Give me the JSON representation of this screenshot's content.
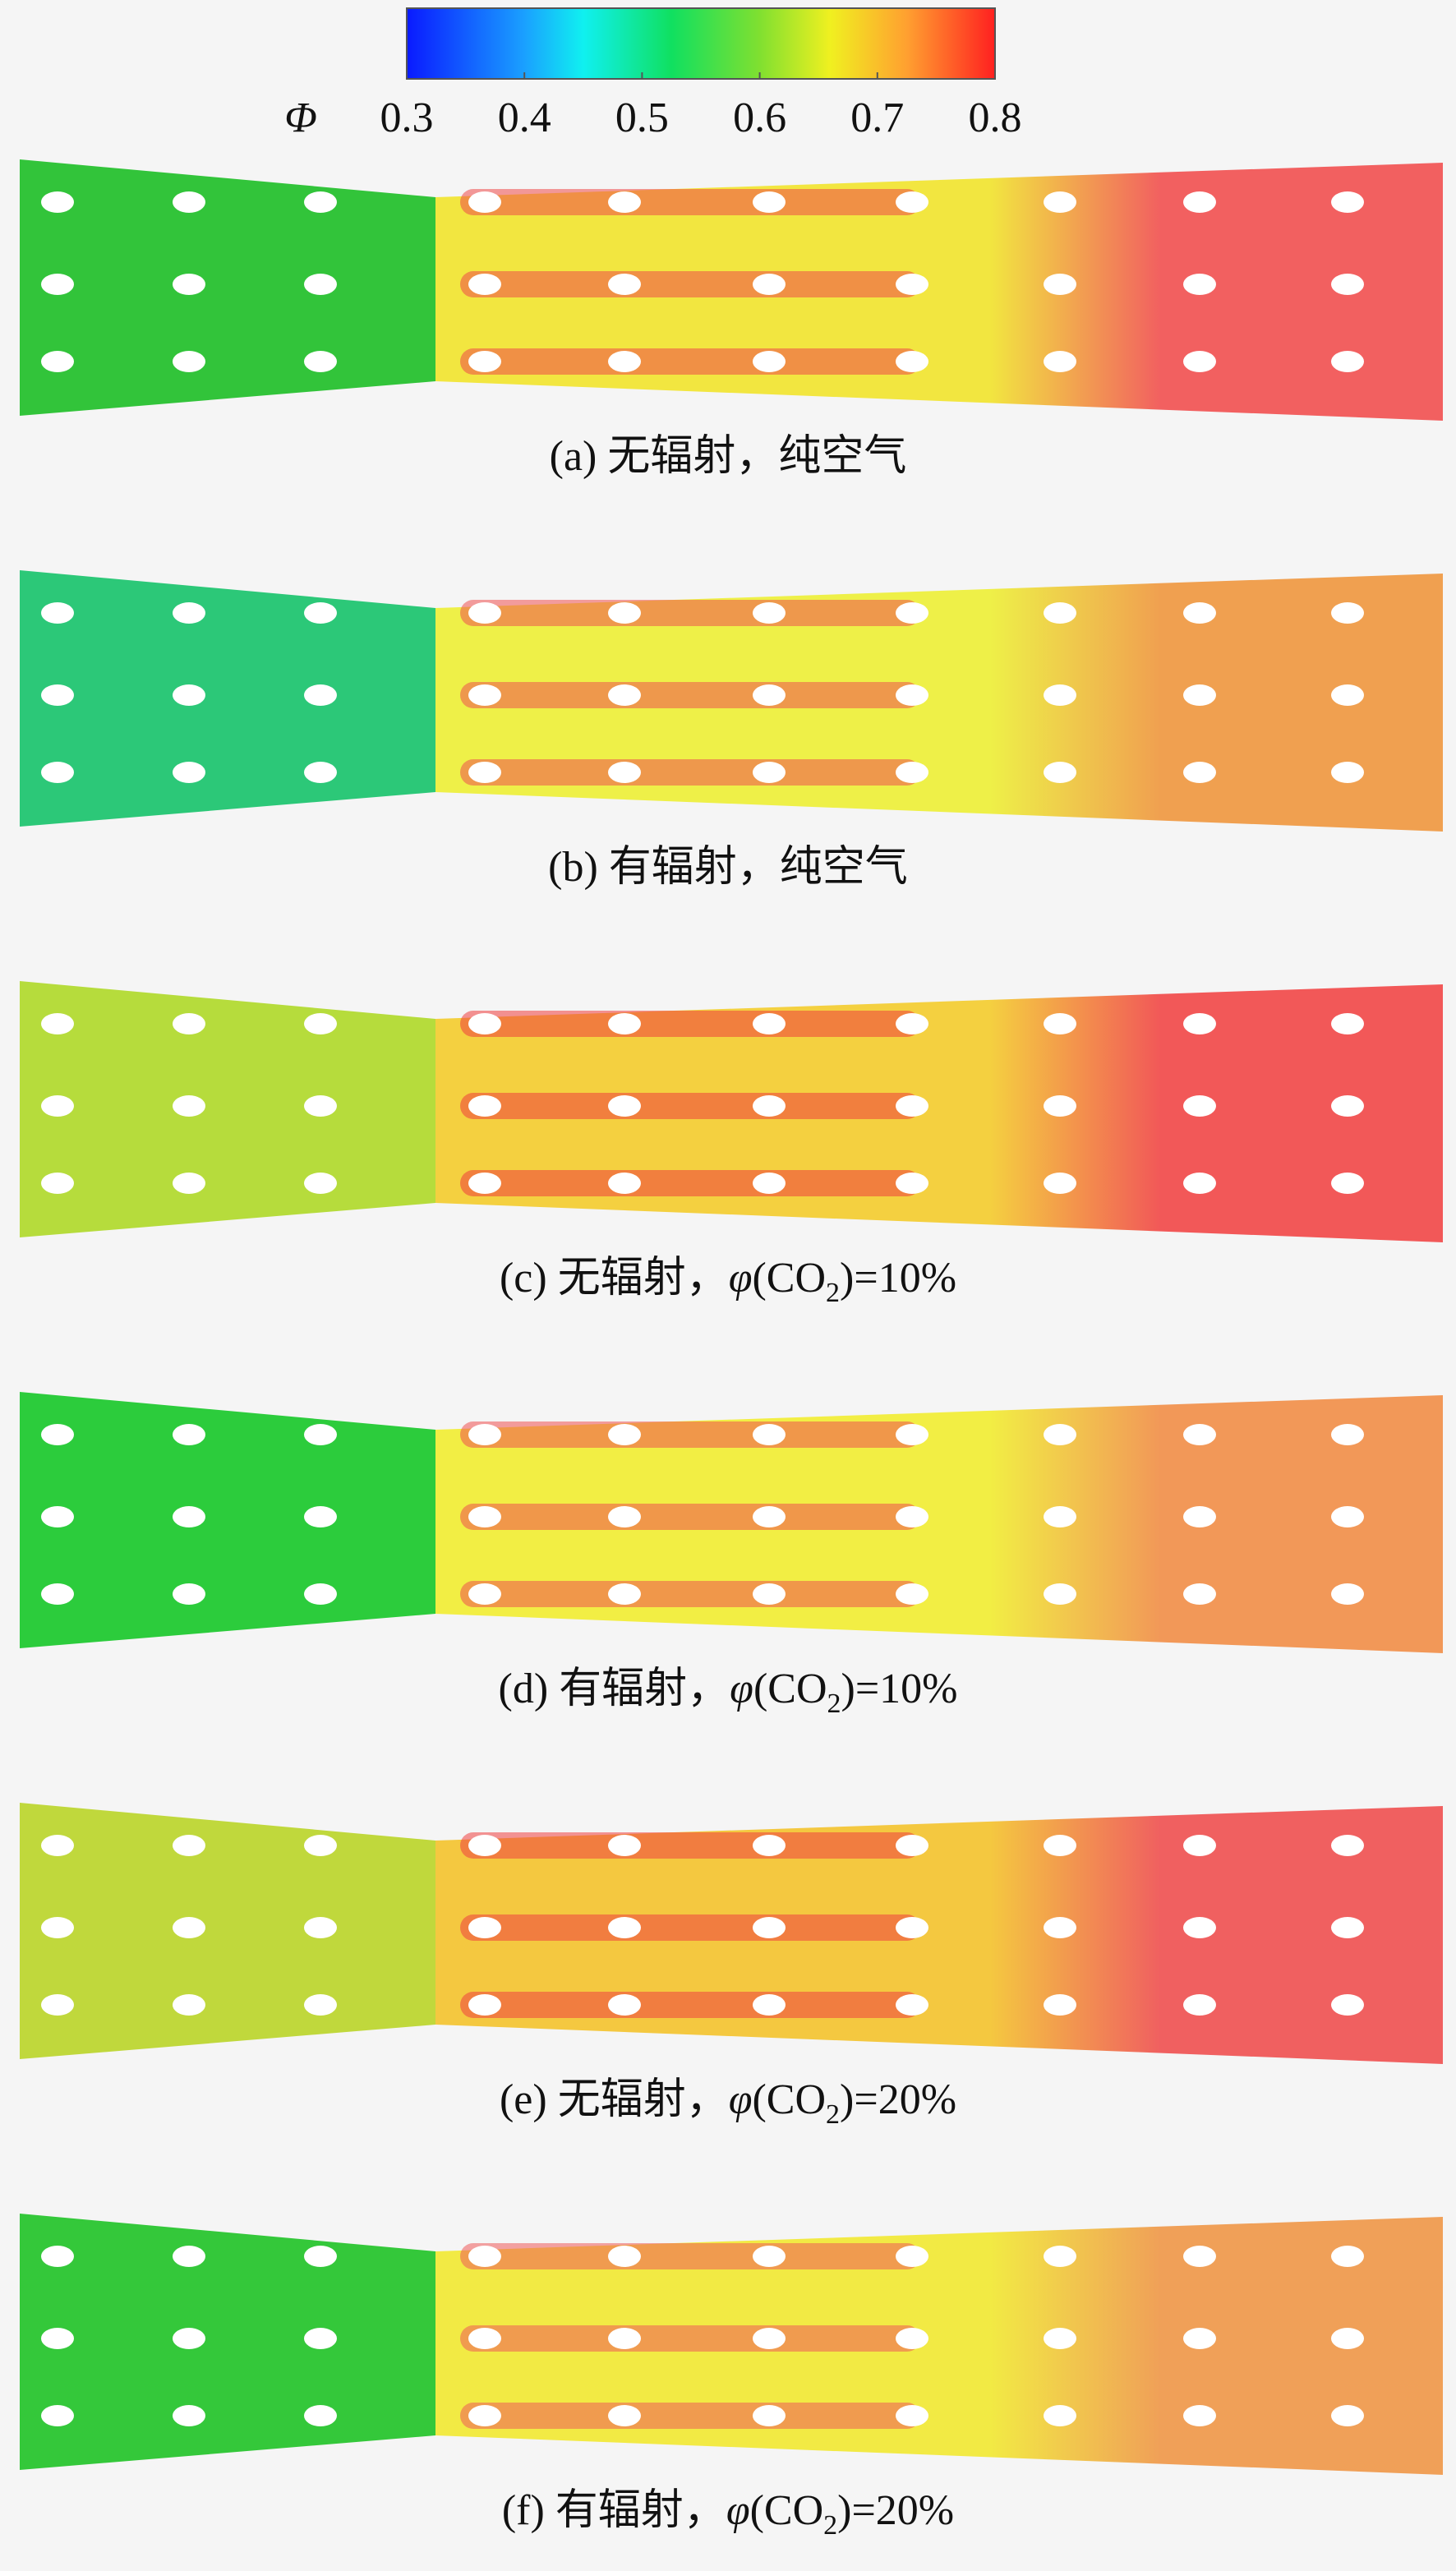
{
  "colorbar": {
    "label": "Φ",
    "range": [
      0.3,
      0.8
    ],
    "ticks": [
      0.3,
      0.4,
      0.5,
      0.6,
      0.7,
      0.8
    ]
  },
  "panels": [
    {
      "label": "(a) 无辐射，纯空气"
    },
    {
      "label": "(b) 有辐射，纯空气"
    },
    {
      "label": "(c) 无辐射，",
      "formula": [
        "φ",
        "(CO",
        "2",
        ")=10%"
      ]
    },
    {
      "label": "(d) 有辐射，",
      "formula": [
        "φ",
        "(CO",
        "2",
        ")=10%"
      ]
    },
    {
      "label": "(e) 无辐射，",
      "formula": [
        "φ",
        "(CO",
        "2",
        ")=20%"
      ]
    },
    {
      "label": "(f) 有辐射，",
      "formula": [
        "φ",
        "(CO",
        "2",
        ")=20%"
      ]
    }
  ]
}
